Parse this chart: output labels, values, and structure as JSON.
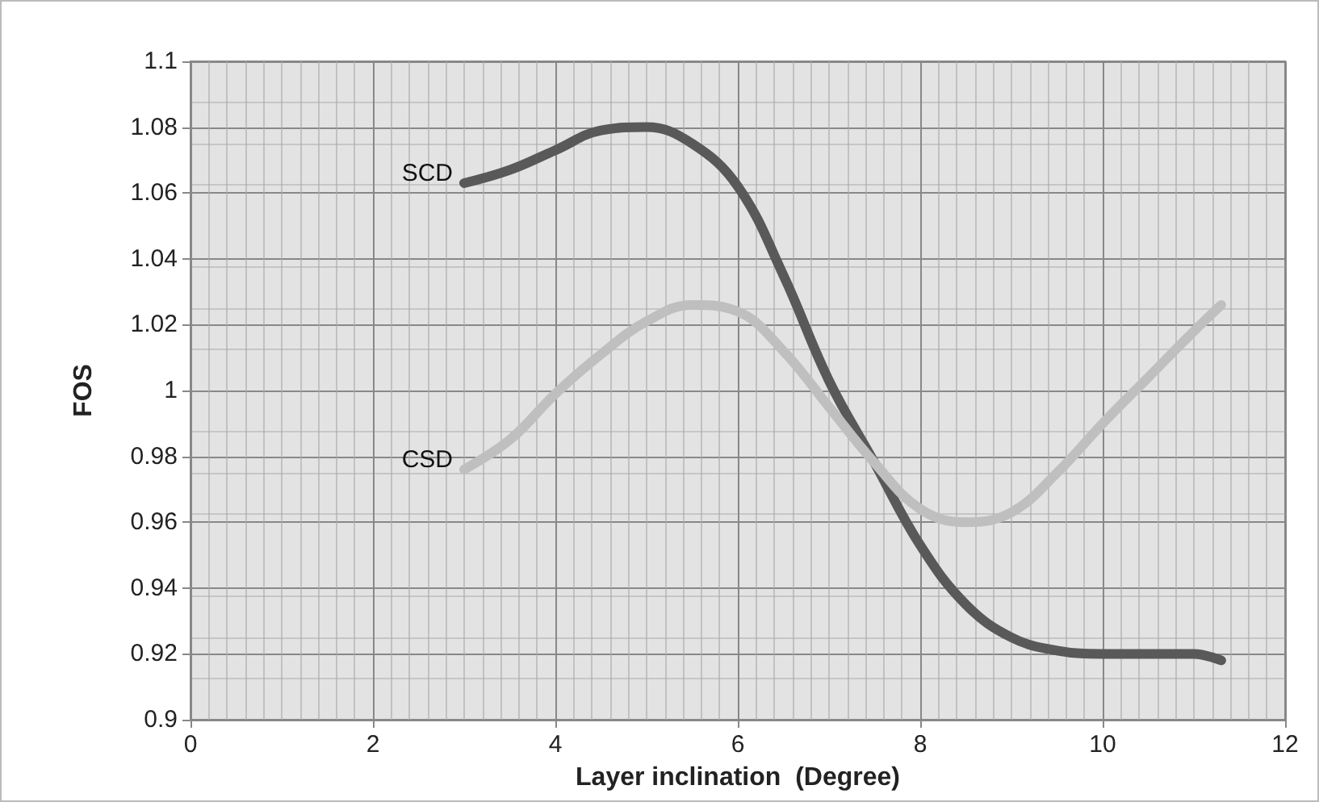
{
  "chart_data": {
    "type": "line",
    "xlabel": "Layer inclination  (Degree)",
    "ylabel": "FOS",
    "x": [
      3,
      3.5,
      4,
      4.5,
      5,
      5.5,
      6,
      6.5,
      7,
      7.5,
      8,
      8.5,
      9,
      9.5,
      10,
      10.5,
      11,
      11.3
    ],
    "series": [
      {
        "name": "SCD",
        "color": "#595959",
        "values": [
          1.063,
          1.067,
          1.073,
          1.079,
          1.08,
          1.075,
          1.062,
          1.035,
          1.003,
          0.978,
          0.953,
          0.935,
          0.925,
          0.921,
          0.92,
          0.92,
          0.92,
          0.918
        ]
      },
      {
        "name": "CSD",
        "color": "#bfbfbf",
        "values": [
          0.976,
          0.985,
          0.999,
          1.011,
          1.021,
          1.026,
          1.024,
          1.012,
          0.995,
          0.978,
          0.964,
          0.96,
          0.963,
          0.975,
          0.99,
          1.004,
          1.018,
          1.026
        ]
      }
    ],
    "xlim": [
      0,
      12
    ],
    "xticks": [
      0,
      2,
      4,
      6,
      8,
      10,
      12
    ],
    "ylim": [
      0.9,
      1.1
    ],
    "yticks": [
      0.9,
      0.92,
      0.94,
      0.96,
      0.98,
      1,
      1.02,
      1.04,
      1.06,
      1.08,
      1.1
    ],
    "grid": true,
    "legend": false,
    "marker": "none",
    "line_style": "solid"
  }
}
